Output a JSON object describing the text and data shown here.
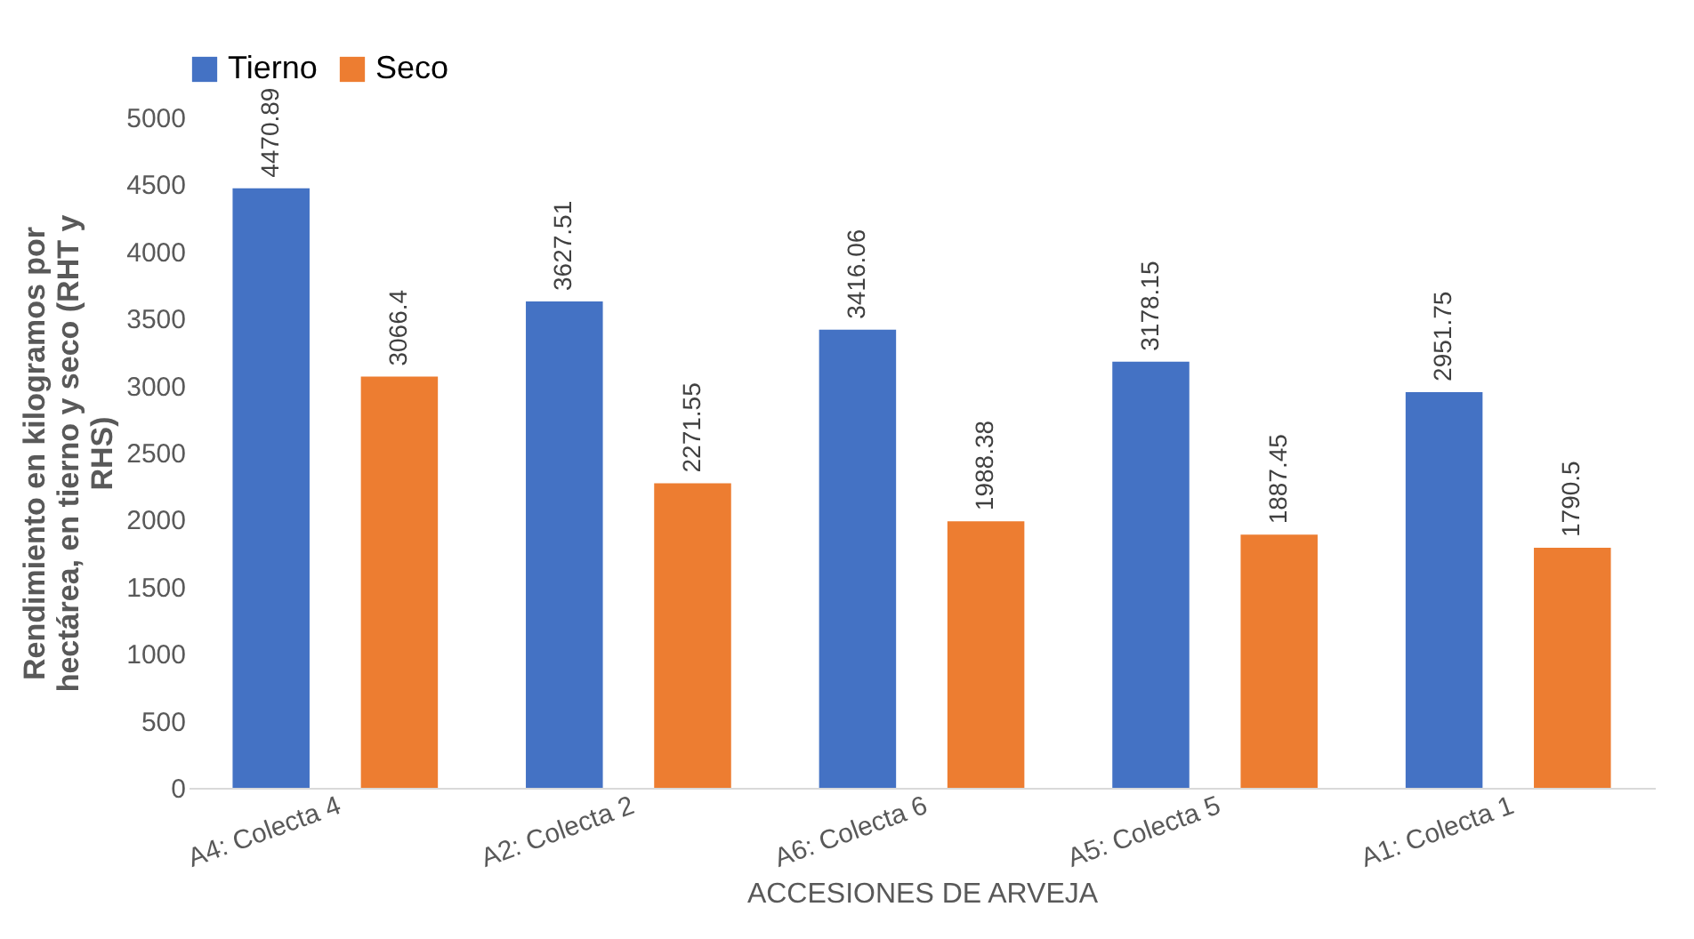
{
  "chart_data": {
    "type": "bar",
    "xlabel": "ACCESIONES DE ARVEJA",
    "ylabel": "Rendimiento en kilogramos por hectárea, en tierno  y seco (RHT y RHS)",
    "categories": [
      "A4: Colecta 4",
      "A2: Colecta 2",
      "A6: Colecta 6",
      "A5: Colecta 5",
      "A1: Colecta 1"
    ],
    "series": [
      {
        "name": "Tierno",
        "color": "#4472c4",
        "values": [
          4470.89,
          3627.51,
          3416.06,
          3178.15,
          2951.75
        ]
      },
      {
        "name": "Seco",
        "color": "#ed7d31",
        "values": [
          3066.4,
          2271.55,
          1988.38,
          1887.45,
          1790.5
        ]
      }
    ],
    "ylim": [
      0,
      5000
    ],
    "yticks": [
      0,
      500,
      1000,
      1500,
      2000,
      2500,
      3000,
      3500,
      4000,
      4500,
      5000
    ],
    "grid": false,
    "legend": "top",
    "data_labels": true
  }
}
